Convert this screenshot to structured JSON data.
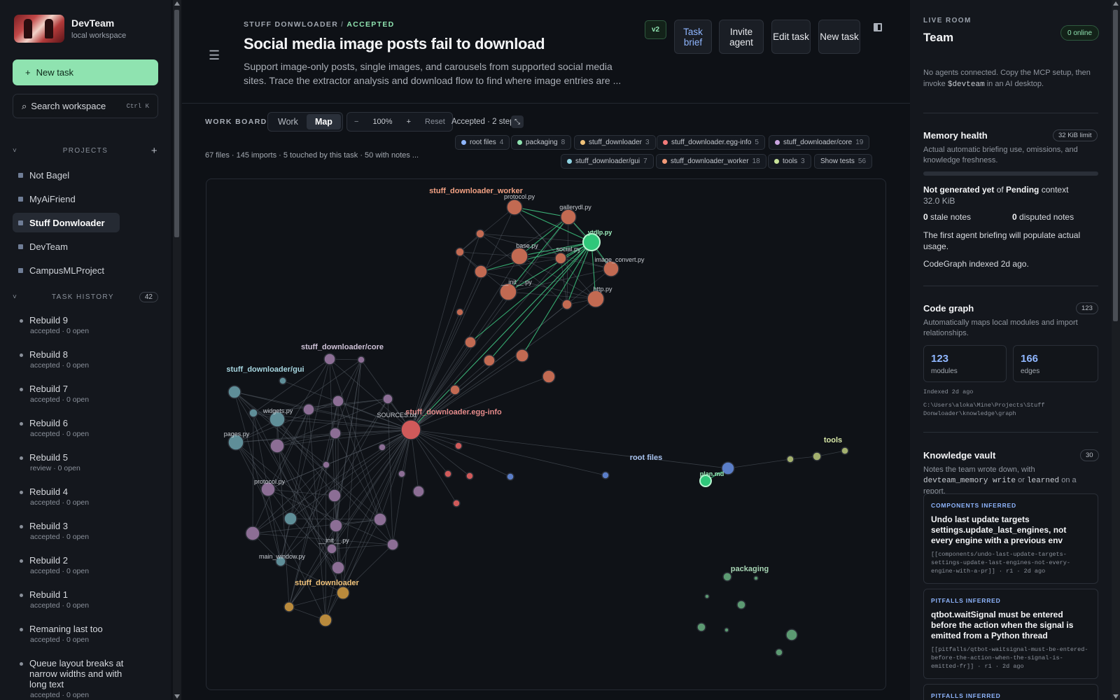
{
  "sidebar": {
    "brand_name": "DevTeam",
    "brand_sub": "local workspace",
    "new_task": "New task",
    "new_task_icon": "+",
    "search_placeholder": "Search workspace",
    "search_kbd": "Ctrl K",
    "projects_label": "PROJECTS",
    "projects": [
      "Not Bagel",
      "MyAiFriend",
      "Stuff Donwloader",
      "DevTeam",
      "CampusMLProject"
    ],
    "active_project": "Stuff Donwloader",
    "history_label": "TASK HISTORY",
    "history_count": "42",
    "tasks": [
      {
        "title": "Rebuild 9",
        "status": "accepted · 0 open"
      },
      {
        "title": "Rebuild 8",
        "status": "accepted · 0 open"
      },
      {
        "title": "Rebuild 7",
        "status": "accepted · 0 open"
      },
      {
        "title": "Rebuild 6",
        "status": "accepted · 0 open"
      },
      {
        "title": "Rebuild 5",
        "status": "review · 0 open"
      },
      {
        "title": "Rebuild 4",
        "status": "accepted · 0 open"
      },
      {
        "title": "Rebuild 3",
        "status": "accepted · 0 open"
      },
      {
        "title": "Rebuild 2",
        "status": "accepted · 0 open"
      },
      {
        "title": "Rebuild 1",
        "status": "accepted · 0 open"
      },
      {
        "title": "Remaning last too",
        "status": "accepted · 0 open"
      },
      {
        "title": "Queue layout breaks at narrow widths and with long text",
        "status": "accepted · 0 open"
      }
    ]
  },
  "header": {
    "crumb_project": "STUFF DONWLOADER",
    "crumb_status": "ACCEPTED",
    "title": "Social media image posts fail to download",
    "description": "Support image-only posts, single images, and carousels from supported social media sites. Trace the extractor analysis and download flow to find where image entries are ...",
    "version": "v2",
    "buttons": {
      "task_brief": "Task brief",
      "invite_agent": "Invite agent",
      "edit_task": "Edit task",
      "new_task": "New task"
    }
  },
  "board": {
    "label": "WORK BOARD",
    "tab_work": "Work",
    "tab_map": "Map",
    "zoom_out": "−",
    "zoom": "100%",
    "zoom_in": "+",
    "reset": "Reset",
    "steps": "Accepted · 2 steps",
    "expand_icon": "⤡",
    "stats": "67 files · 145 imports · 5 touched by this task · 50 with notes ...",
    "chips": [
      {
        "name": "root files",
        "count": "4",
        "color": "#8fb6ff"
      },
      {
        "name": "packaging",
        "count": "8",
        "color": "#8fe3b0"
      },
      {
        "name": "stuff_downloader",
        "count": "3",
        "color": "#f0c27a"
      },
      {
        "name": "stuff_downloader.egg-info",
        "count": "5",
        "color": "#f27a7a"
      },
      {
        "name": "stuff_downloader/core",
        "count": "19",
        "color": "#c9a4e0"
      },
      {
        "name": "stuff_downloader/gui",
        "count": "7",
        "color": "#8fd4e3"
      },
      {
        "name": "stuff_downloader_worker",
        "count": "18",
        "color": "#f29a78"
      },
      {
        "name": "tools",
        "count": "3",
        "color": "#c8e39a"
      }
    ],
    "show_tests": "Show tests",
    "show_tests_count": "56"
  },
  "graph": {
    "labels": {
      "worker": "stuff_downloader_worker",
      "core": "stuff_downloader/core",
      "gui": "stuff_downloader/gui",
      "egg": "stuff_downloader.egg-info",
      "sources": "SOURCES.txt",
      "root": "root files",
      "tools": "tools",
      "packaging": "packaging",
      "pkg": "stuff_downloader",
      "protocol_w": "protocol.py",
      "gallerydl": "gallerydl.py",
      "ytdlp": "ytdlp.py",
      "base": "base.py",
      "social": "social.py",
      "image_convert": "image_convert.py",
      "init_w": "__init__.py",
      "http": "http.py",
      "widgets": "widgets.py",
      "pages": "pages.py",
      "protocol_c": "protocol.py",
      "init_c": "__init__.py",
      "main_window": "main_window.py",
      "plan": "plan.md"
    }
  },
  "right": {
    "live_label": "LIVE ROOM",
    "room": "Team",
    "online": "0 online",
    "note_pre": "No agents connected. Copy the MCP setup, then invoke ",
    "note_code": "$devteam",
    "note_post": " in an AI desktop.",
    "memory_title": "Memory health",
    "memory_limit": "32 KiB limit",
    "memory_sub": "Actual automatic briefing use, omissions, and knowledge freshness.",
    "not_generated": "Not generated yet",
    "of": " of ",
    "pending": "Pending",
    "context": " context",
    "size": "32.0 KiB",
    "stale_n": "0",
    "stale": " stale notes",
    "disputed_n": "0",
    "disputed": " disputed notes",
    "first_brief": "The first agent briefing will populate actual usage.",
    "indexed": "CodeGraph indexed 2d ago.",
    "cg_title": "Code graph",
    "cg_count": "123",
    "cg_sub": "Automatically maps local modules and import relationships.",
    "modules_n": "123",
    "modules": "modules",
    "edges_n": "166",
    "edges": "edges",
    "indexed_small": "Indexed 2d ago",
    "path": "C:\\Users\\aloka\\Mine\\Projects\\Stuff Donwloader\\knowledge\\graph",
    "kv_title": "Knowledge vault",
    "kv_count": "30",
    "kv_pre": "Notes the team wrote down, with ",
    "kv_code1": "devteam_memory write",
    "kv_mid": " or ",
    "kv_code2": "learned",
    "kv_post": " on a report.",
    "notes": [
      {
        "tag": "COMPONENTS  INFERRED",
        "title": "Undo last update targets settings.update_last_engines, not every engine with a previous env",
        "meta": "[[components/undo-last-update-targets-settings-update-last-engines-not-every-engine-with-a-pr]] · r1 · 2d ago"
      },
      {
        "tag": "PITFALLS  INFERRED",
        "title": "qtbot.waitSignal must be entered before the action when the signal is emitted from a Python thread",
        "meta": "[[pitfalls/qtbot-waitsignal-must-be-entered-before-the-action-when-the-signal-is-emitted-fr]] · r1 · 2d ago"
      },
      {
        "tag": "PITFALLS  INFERRED",
        "title": "",
        "meta": ""
      }
    ]
  }
}
